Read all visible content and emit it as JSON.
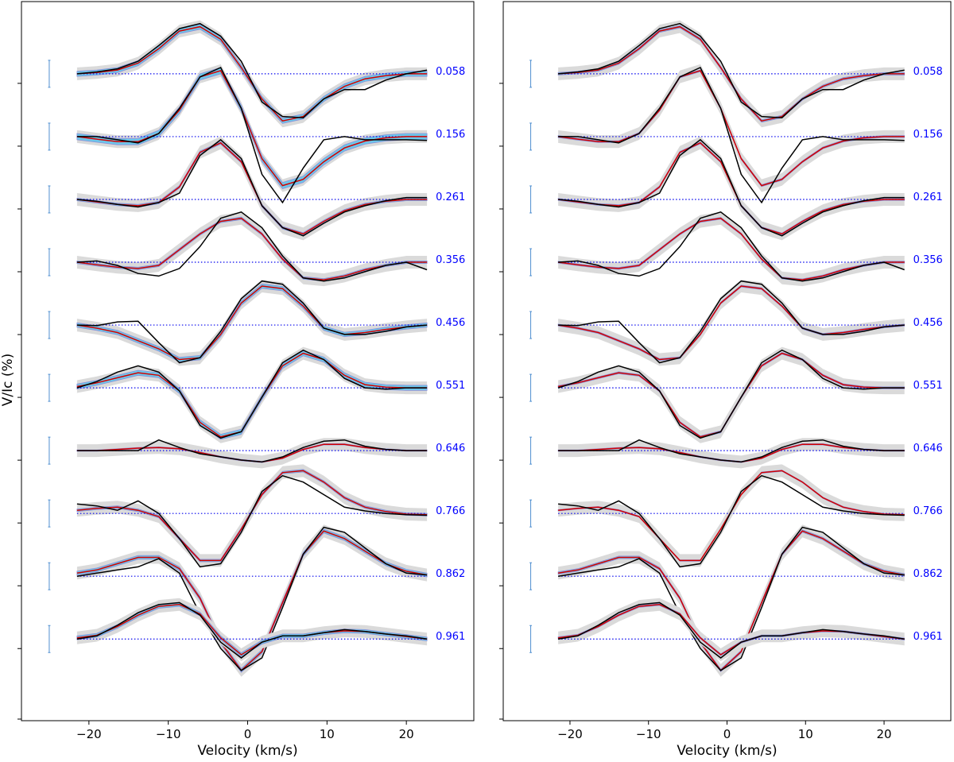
{
  "ylabel": "V/Ic (%)",
  "colors": {
    "observed": "#000000",
    "model": "#d40000",
    "model_band": "#6cc6ea",
    "model_band_line": "#8a8fd8",
    "uncertainty_band": "#dadada",
    "zero_line": "#0000ee",
    "phase_label": "#0000ff",
    "error_bar": "#4f8fd0"
  },
  "chart_data": [
    {
      "type": "line",
      "panel": "left",
      "xlabel": "Velocity (km/s)",
      "ylabel": "V/Ic (%)",
      "xlim": [
        -28.5,
        28.5
      ],
      "xticks": [
        -20,
        -10,
        0,
        10,
        20
      ],
      "xtick_labels": [
        "−20",
        "−10",
        "0",
        "10",
        "20"
      ],
      "ylim": [
        -10.3,
        1.15
      ],
      "yticks": [
        0,
        -1,
        -2,
        -3,
        -4,
        -5,
        -6,
        -7,
        -8,
        -9
      ],
      "x": [
        -21.5,
        -19,
        -16.4,
        -13.8,
        -11.2,
        -8.6,
        -6,
        -3.4,
        -0.8,
        1.8,
        4.4,
        7,
        9.6,
        12.2,
        14.8,
        17.4,
        20,
        22.6
      ],
      "phases": [
        "0.058",
        "0.156",
        "0.261",
        "0.356",
        "0.456",
        "0.551",
        "0.646",
        "0.766",
        "0.862",
        "0.961"
      ],
      "offsets": [
        0,
        -1,
        -2,
        -3,
        -4,
        -5,
        -6,
        -7,
        -8,
        -9
      ],
      "series": [
        {
          "phase": "0.058",
          "observed": [
            0,
            0.03,
            0.08,
            0.2,
            0.45,
            0.72,
            0.8,
            0.6,
            0.2,
            -0.45,
            -0.68,
            -0.7,
            -0.4,
            -0.25,
            -0.25,
            -0.1,
            0,
            0.06
          ],
          "model": [
            0,
            0.02,
            0.06,
            0.17,
            0.4,
            0.68,
            0.75,
            0.55,
            0.1,
            -0.4,
            -0.75,
            -0.68,
            -0.4,
            -0.2,
            -0.08,
            -0.03,
            0,
            0
          ],
          "band": 0.08
        },
        {
          "phase": "0.156",
          "observed": [
            0,
            0,
            -0.05,
            -0.1,
            0.05,
            0.45,
            0.95,
            1.1,
            0.45,
            -0.6,
            -1.05,
            -0.5,
            -0.05,
            0,
            -0.05,
            -0.05,
            -0.05,
            -0.06
          ],
          "model": [
            0,
            -0.04,
            -0.08,
            -0.08,
            0.05,
            0.42,
            0.95,
            1.05,
            0.45,
            -0.35,
            -0.78,
            -0.68,
            -0.4,
            -0.18,
            -0.07,
            -0.02,
            0,
            0
          ],
          "band": 0.1
        },
        {
          "phase": "0.261",
          "observed": [
            0,
            -0.03,
            -0.08,
            -0.12,
            -0.05,
            0.1,
            0.7,
            0.95,
            0.65,
            -0.1,
            -0.45,
            -0.58,
            -0.38,
            -0.2,
            -0.1,
            -0.02,
            0.03,
            0.03
          ],
          "model": [
            0,
            -0.04,
            -0.08,
            -0.1,
            -0.05,
            0.2,
            0.75,
            0.9,
            0.6,
            -0.1,
            -0.45,
            -0.55,
            -0.35,
            -0.18,
            -0.08,
            -0.03,
            0,
            0
          ],
          "band": 0.04
        },
        {
          "phase": "0.356",
          "observed": [
            0,
            0.02,
            -0.05,
            -0.18,
            -0.22,
            -0.1,
            0.25,
            0.7,
            0.8,
            0.55,
            0.1,
            -0.25,
            -0.3,
            -0.25,
            -0.15,
            -0.05,
            0,
            -0.12
          ],
          "model": [
            0,
            -0.04,
            -0.08,
            -0.1,
            -0.05,
            0.2,
            0.45,
            0.65,
            0.7,
            0.45,
            0.05,
            -0.25,
            -0.28,
            -0.22,
            -0.12,
            -0.05,
            0,
            0
          ],
          "band": 0.04
        },
        {
          "phase": "0.456",
          "observed": [
            0,
            -0.01,
            0.05,
            0.06,
            -0.28,
            -0.6,
            -0.52,
            -0.1,
            0.42,
            0.7,
            0.65,
            0.35,
            -0.05,
            -0.15,
            -0.15,
            -0.1,
            -0.03,
            0
          ],
          "model": [
            0,
            -0.05,
            -0.12,
            -0.25,
            -0.38,
            -0.55,
            -0.52,
            -0.15,
            0.35,
            0.62,
            0.58,
            0.3,
            -0.05,
            -0.15,
            -0.12,
            -0.07,
            -0.03,
            0
          ],
          "band": 0.07
        },
        {
          "phase": "0.551",
          "observed": [
            0,
            0.1,
            0.25,
            0.35,
            0.25,
            -0.05,
            -0.6,
            -0.8,
            -0.7,
            -0.15,
            0.4,
            0.6,
            0.45,
            0.15,
            0,
            -0.02,
            0,
            0
          ],
          "model": [
            0.02,
            0.08,
            0.16,
            0.24,
            0.2,
            -0.05,
            -0.55,
            -0.78,
            -0.7,
            -0.15,
            0.35,
            0.55,
            0.45,
            0.2,
            0.05,
            0.01,
            0,
            0
          ],
          "band": 0.08
        },
        {
          "phase": "0.646",
          "observed": [
            0,
            0,
            0,
            0,
            0.17,
            0.05,
            -0.05,
            -0.1,
            -0.15,
            -0.18,
            -0.1,
            0.05,
            0.15,
            0.17,
            0.07,
            0.02,
            0,
            0
          ],
          "model": [
            0,
            0,
            0.02,
            0.04,
            0.05,
            0.03,
            -0.03,
            -0.1,
            -0.15,
            -0.18,
            -0.12,
            0.02,
            0.1,
            0.1,
            0.05,
            0.02,
            0,
            0
          ],
          "band": 0.02
        },
        {
          "phase": "0.766",
          "observed": [
            0.15,
            0.12,
            0.05,
            0.2,
            0,
            -0.4,
            -0.85,
            -0.8,
            -0.3,
            0.35,
            0.6,
            0.5,
            0.3,
            0.1,
            0.04,
            0,
            -0.02,
            -0.03
          ],
          "model": [
            0.05,
            0.08,
            0.1,
            0.05,
            -0.05,
            -0.4,
            -0.75,
            -0.75,
            -0.25,
            0.3,
            0.65,
            0.68,
            0.5,
            0.25,
            0.1,
            0.03,
            -0.01,
            -0.02
          ],
          "band": 0.04
        },
        {
          "phase": "0.862",
          "observed": [
            0,
            0.05,
            0.1,
            0.15,
            0.28,
            0.05,
            -0.6,
            -1.15,
            -1.5,
            -1.3,
            -0.5,
            0.35,
            0.78,
            0.7,
            0.45,
            0.2,
            0.05,
            0.02
          ],
          "model": [
            0.05,
            0.1,
            0.2,
            0.3,
            0.3,
            0.12,
            -0.35,
            -1.05,
            -1.5,
            -1.2,
            -0.42,
            0.35,
            0.72,
            0.6,
            0.4,
            0.2,
            0.08,
            0.02
          ],
          "band": 0.06
        },
        {
          "phase": "0.961",
          "observed": [
            0,
            0.05,
            0.22,
            0.42,
            0.55,
            0.58,
            0.38,
            -0.05,
            -0.3,
            -0.05,
            0.05,
            0.05,
            0.1,
            0.15,
            0.12,
            0.08,
            0.05,
            0
          ],
          "model": [
            0.02,
            0.06,
            0.2,
            0.38,
            0.52,
            0.55,
            0.4,
            0.02,
            -0.25,
            -0.05,
            0.05,
            0.05,
            0.1,
            0.13,
            0.12,
            0.08,
            0.04,
            0
          ],
          "band": 0.06
        }
      ]
    },
    {
      "type": "line",
      "panel": "right",
      "xlabel": "Velocity (km/s)",
      "ylabel": "",
      "xlim": [
        -28.5,
        28.5
      ],
      "xticks": [
        -20,
        -10,
        0,
        10,
        20
      ],
      "xtick_labels": [
        "−20",
        "−10",
        "0",
        "10",
        "20"
      ],
      "ylim": [
        -10.3,
        1.15
      ],
      "yticks": [
        0,
        -1,
        -2,
        -3,
        -4,
        -5,
        -6,
        -7,
        -8,
        -9
      ],
      "x": [
        -21.5,
        -19,
        -16.4,
        -13.8,
        -11.2,
        -8.6,
        -6,
        -3.4,
        -0.8,
        1.8,
        4.4,
        7,
        9.6,
        12.2,
        14.8,
        17.4,
        20,
        22.6
      ],
      "phases": [
        "0.058",
        "0.156",
        "0.261",
        "0.356",
        "0.456",
        "0.551",
        "0.646",
        "0.766",
        "0.862",
        "0.961"
      ],
      "offsets": [
        0,
        -1,
        -2,
        -3,
        -4,
        -5,
        -6,
        -7,
        -8,
        -9
      ],
      "series": [
        {
          "phase": "0.058",
          "observed": [
            0,
            0.03,
            0.08,
            0.2,
            0.45,
            0.72,
            0.8,
            0.6,
            0.2,
            -0.45,
            -0.68,
            -0.7,
            -0.4,
            -0.25,
            -0.25,
            -0.1,
            0,
            0.06
          ],
          "model": [
            0,
            0.02,
            0.06,
            0.17,
            0.4,
            0.68,
            0.75,
            0.55,
            0.1,
            -0.4,
            -0.75,
            -0.68,
            -0.4,
            -0.2,
            -0.08,
            -0.03,
            0,
            0
          ],
          "band": 0.04
        },
        {
          "phase": "0.156",
          "observed": [
            0,
            0,
            -0.05,
            -0.1,
            0.05,
            0.45,
            0.95,
            1.1,
            0.45,
            -0.6,
            -1.05,
            -0.5,
            -0.05,
            0,
            -0.05,
            -0.05,
            -0.05,
            -0.06
          ],
          "model": [
            0,
            -0.04,
            -0.08,
            -0.08,
            0.05,
            0.42,
            0.95,
            1.05,
            0.45,
            -0.35,
            -0.78,
            -0.68,
            -0.4,
            -0.18,
            -0.07,
            -0.02,
            0,
            0
          ],
          "band": 0.03
        },
        {
          "phase": "0.261",
          "observed": [
            0,
            -0.03,
            -0.08,
            -0.12,
            -0.05,
            0.1,
            0.7,
            0.95,
            0.65,
            -0.1,
            -0.45,
            -0.58,
            -0.38,
            -0.2,
            -0.1,
            -0.02,
            0.03,
            0.03
          ],
          "model": [
            0,
            -0.04,
            -0.08,
            -0.1,
            -0.05,
            0.2,
            0.75,
            0.9,
            0.6,
            -0.1,
            -0.45,
            -0.55,
            -0.35,
            -0.18,
            -0.08,
            -0.03,
            0,
            0
          ],
          "band": 0.03
        },
        {
          "phase": "0.356",
          "observed": [
            0,
            0.02,
            -0.05,
            -0.18,
            -0.22,
            -0.1,
            0.25,
            0.7,
            0.8,
            0.55,
            0.1,
            -0.25,
            -0.3,
            -0.25,
            -0.15,
            -0.05,
            0,
            -0.12
          ],
          "model": [
            0,
            -0.04,
            -0.08,
            -0.1,
            -0.05,
            0.2,
            0.45,
            0.65,
            0.7,
            0.45,
            0.05,
            -0.25,
            -0.28,
            -0.22,
            -0.12,
            -0.05,
            0,
            0
          ],
          "band": 0.03
        },
        {
          "phase": "0.456",
          "observed": [
            0,
            -0.01,
            0.05,
            0.06,
            -0.28,
            -0.6,
            -0.52,
            -0.1,
            0.42,
            0.7,
            0.65,
            0.35,
            -0.05,
            -0.15,
            -0.15,
            -0.1,
            -0.03,
            0
          ],
          "model": [
            0,
            -0.05,
            -0.12,
            -0.25,
            -0.38,
            -0.55,
            -0.52,
            -0.15,
            0.35,
            0.62,
            0.58,
            0.3,
            -0.05,
            -0.15,
            -0.12,
            -0.07,
            -0.03,
            0
          ],
          "band": 0.03
        },
        {
          "phase": "0.551",
          "observed": [
            0,
            0.1,
            0.25,
            0.35,
            0.25,
            -0.05,
            -0.6,
            -0.8,
            -0.7,
            -0.15,
            0.4,
            0.6,
            0.45,
            0.15,
            0,
            -0.02,
            0,
            0
          ],
          "model": [
            0.02,
            0.08,
            0.16,
            0.24,
            0.2,
            -0.05,
            -0.55,
            -0.78,
            -0.7,
            -0.15,
            0.35,
            0.55,
            0.45,
            0.2,
            0.05,
            0.01,
            0,
            0
          ],
          "band": 0.03
        },
        {
          "phase": "0.646",
          "observed": [
            0,
            0,
            0,
            0,
            0.17,
            0.05,
            -0.05,
            -0.1,
            -0.15,
            -0.18,
            -0.1,
            0.05,
            0.15,
            0.17,
            0.07,
            0.02,
            0,
            0
          ],
          "model": [
            0,
            0,
            0.02,
            0.04,
            0.05,
            0.03,
            -0.03,
            -0.1,
            -0.15,
            -0.18,
            -0.12,
            0.02,
            0.1,
            0.1,
            0.05,
            0.02,
            0,
            0
          ],
          "band": 0.02
        },
        {
          "phase": "0.766",
          "observed": [
            0.15,
            0.12,
            0.05,
            0.2,
            0,
            -0.4,
            -0.85,
            -0.8,
            -0.3,
            0.35,
            0.6,
            0.5,
            0.3,
            0.1,
            0.04,
            0,
            -0.02,
            -0.03
          ],
          "model": [
            0.05,
            0.08,
            0.1,
            0.05,
            -0.05,
            -0.4,
            -0.75,
            -0.75,
            -0.25,
            0.3,
            0.65,
            0.68,
            0.5,
            0.25,
            0.1,
            0.03,
            -0.01,
            -0.02
          ],
          "band": 0.02
        },
        {
          "phase": "0.862",
          "observed": [
            0,
            0.05,
            0.1,
            0.15,
            0.28,
            0.05,
            -0.6,
            -1.15,
            -1.5,
            -1.3,
            -0.5,
            0.35,
            0.78,
            0.7,
            0.45,
            0.2,
            0.05,
            0.02
          ],
          "model": [
            0.05,
            0.1,
            0.2,
            0.3,
            0.3,
            0.12,
            -0.35,
            -1.05,
            -1.5,
            -1.2,
            -0.42,
            0.35,
            0.72,
            0.6,
            0.4,
            0.2,
            0.08,
            0.02
          ],
          "band": 0.04
        },
        {
          "phase": "0.961",
          "observed": [
            0,
            0.05,
            0.22,
            0.42,
            0.55,
            0.58,
            0.38,
            -0.05,
            -0.3,
            -0.05,
            0.05,
            0.05,
            0.1,
            0.15,
            0.12,
            0.08,
            0.05,
            0
          ],
          "model": [
            0.02,
            0.06,
            0.2,
            0.38,
            0.52,
            0.55,
            0.4,
            0.02,
            -0.25,
            -0.05,
            0.05,
            0.05,
            0.1,
            0.13,
            0.12,
            0.08,
            0.04,
            0
          ],
          "band": 0.03
        }
      ]
    }
  ]
}
